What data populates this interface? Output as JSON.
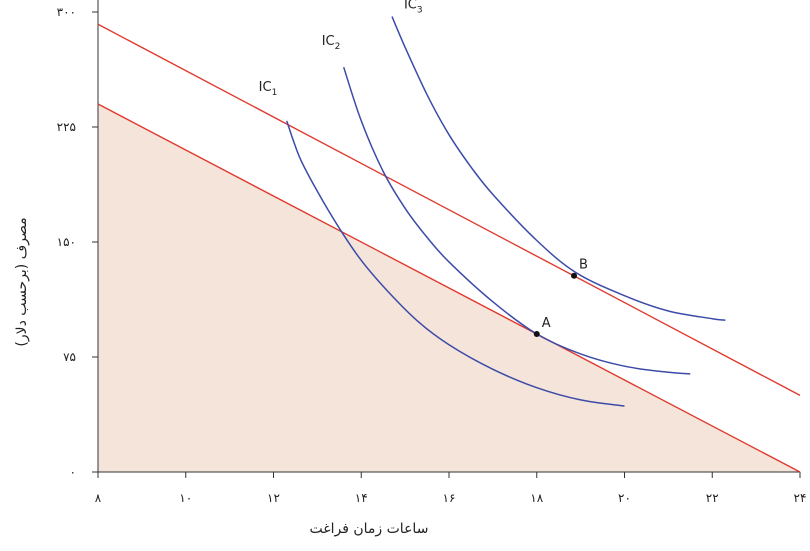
{
  "chart_data": {
    "type": "line",
    "xlabel": "ساعات زمان فراغت",
    "ylabel": "مصرف (برحسب دلار)",
    "xlim": [
      8,
      24
    ],
    "ylim": [
      0,
      300
    ],
    "x_ticks": [
      8,
      10,
      12,
      14,
      16,
      18,
      20,
      22,
      24
    ],
    "x_tick_labels": [
      "۸",
      "۱۰",
      "۱۲",
      "۱۴",
      "۱۶",
      "۱۸",
      "۲۰",
      "۲۲",
      "۲۴"
    ],
    "y_ticks": [
      0,
      75,
      150,
      225,
      300
    ],
    "y_tick_labels": [
      "۰",
      "۷۵",
      "۱۵۰",
      "۲۲۵",
      "۳۰۰"
    ],
    "budget_lines": [
      {
        "points": [
          [
            8,
            240
          ],
          [
            24,
            0
          ]
        ],
        "color": "#e03a2e"
      },
      {
        "points": [
          [
            8,
            292
          ],
          [
            24,
            50
          ]
        ],
        "color": "#e03a2e"
      }
    ],
    "feasible_set": {
      "points": [
        [
          8,
          240
        ],
        [
          24,
          0
        ],
        [
          8,
          0
        ]
      ],
      "color": "#f5e4da"
    },
    "indifference_curves": [
      {
        "name": "IC",
        "sub": "1",
        "color": "#3c4ba8",
        "points": [
          [
            12.3,
            229
          ],
          [
            12.6,
            205
          ],
          [
            13,
            183
          ],
          [
            13.5,
            159
          ],
          [
            14,
            138
          ],
          [
            14.6,
            118
          ],
          [
            15.3,
            98
          ],
          [
            16,
            83
          ],
          [
            17,
            67
          ],
          [
            18,
            55
          ],
          [
            19,
            47
          ],
          [
            20,
            43
          ]
        ]
      },
      {
        "name": "IC",
        "sub": "2",
        "color": "#3c4ba8",
        "points": [
          [
            13.6,
            264
          ],
          [
            14,
            229
          ],
          [
            14.5,
            196
          ],
          [
            15,
            172
          ],
          [
            15.5,
            153
          ],
          [
            16,
            137
          ],
          [
            17,
            111
          ],
          [
            18,
            90
          ],
          [
            19,
            77
          ],
          [
            20,
            69
          ],
          [
            21,
            65
          ],
          [
            21.5,
            64
          ]
        ]
      },
      {
        "name": "IC",
        "sub": "3",
        "color": "#3c4ba8",
        "points": [
          [
            14.7,
            297
          ],
          [
            15,
            277
          ],
          [
            15.5,
            246
          ],
          [
            16,
            220
          ],
          [
            16.5,
            199
          ],
          [
            17,
            181
          ],
          [
            18,
            151
          ],
          [
            18.9,
            130
          ],
          [
            20,
            115
          ],
          [
            21,
            105
          ],
          [
            22,
            100
          ],
          [
            22.3,
            99
          ]
        ]
      }
    ],
    "points": [
      {
        "label": "A",
        "x": 18,
        "y": 90
      },
      {
        "label": "B",
        "x": 18.85,
        "y": 128
      }
    ]
  }
}
